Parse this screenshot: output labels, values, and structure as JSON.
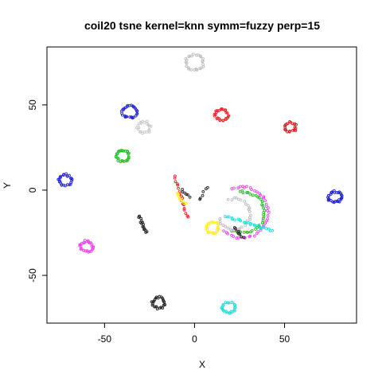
{
  "chart_data": {
    "type": "scatter",
    "title": "coil20 tsne kernel=knn symm=fuzzy perp=15",
    "xlabel": "X",
    "ylabel": "Y",
    "xlim": [
      -82,
      90
    ],
    "ylim": [
      -78,
      84
    ],
    "grid": false,
    "legend": "none",
    "x_ticks": [
      -50,
      0,
      50
    ],
    "y_ticks": [
      -50,
      0,
      50
    ],
    "x_tick_labels": [
      "-50",
      "0",
      "50"
    ],
    "y_tick_labels": [
      "-50",
      "0",
      "50"
    ],
    "clusters": [
      {
        "shape": "ring",
        "color": "#bdbdbd",
        "cx": 0,
        "cy": 75,
        "r": 5,
        "n": 26
      },
      {
        "shape": "ring",
        "color": "#2222dd",
        "cx": -36,
        "cy": 46,
        "r": 4,
        "n": 30
      },
      {
        "shape": "ring",
        "color": "#ee2222",
        "cx": 15,
        "cy": 44,
        "r": 3.5,
        "n": 26
      },
      {
        "shape": "ring",
        "color": "#cc2222",
        "cx": 53,
        "cy": 37,
        "r": 3,
        "n": 22
      },
      {
        "shape": "ring",
        "color": "#c8c8c8",
        "cx": -28,
        "cy": 37,
        "r": 3.5,
        "n": 22
      },
      {
        "shape": "ring",
        "color": "#22bb22",
        "cx": -40,
        "cy": 20,
        "r": 3.5,
        "n": 28
      },
      {
        "shape": "ring",
        "color": "#2222dd",
        "cx": -72,
        "cy": 6,
        "r": 3.5,
        "n": 26
      },
      {
        "shape": "ring",
        "color": "#1a1ad0",
        "cx": 78,
        "cy": -4,
        "r": 3.5,
        "n": 28
      },
      {
        "shape": "ring",
        "color": "#ee44ee",
        "cx": -60,
        "cy": -33,
        "r": 3.5,
        "n": 28
      },
      {
        "shape": "ring",
        "color": "#ffee22",
        "cx": 10,
        "cy": -22,
        "r": 3.5,
        "n": 26
      },
      {
        "shape": "ring",
        "color": "#222222",
        "cx": -20,
        "cy": -66,
        "r": 3.5,
        "n": 26
      },
      {
        "shape": "ring",
        "color": "#22dddd",
        "cx": 19,
        "cy": -69,
        "r": 3.5,
        "n": 26
      },
      {
        "shape": "line",
        "color": "#222222",
        "x1": -31,
        "y1": -15,
        "x2": -27,
        "y2": -25,
        "n": 16
      },
      {
        "shape": "line",
        "color": "#ee2222",
        "x1": -11,
        "y1": 8,
        "x2": -4,
        "y2": -16,
        "n": 18
      },
      {
        "shape": "line",
        "color": "#ffee22",
        "x1": -10,
        "y1": -2,
        "x2": -5,
        "y2": -8,
        "n": 10
      },
      {
        "shape": "line",
        "color": "#222222",
        "x1": -7,
        "y1": 0,
        "x2": -3,
        "y2": -4,
        "n": 6
      },
      {
        "shape": "arc",
        "color": "#ee44ee",
        "cx": 26,
        "cy": -13,
        "r": 15,
        "a1": 230,
        "a2": 470,
        "n": 44
      },
      {
        "shape": "arc",
        "color": "#22bb22",
        "cx": 27,
        "cy": -13,
        "r": 12,
        "a1": 240,
        "a2": 460,
        "n": 36
      },
      {
        "shape": "arc",
        "color": "#bdbdbd",
        "cx": 22,
        "cy": -14,
        "r": 9,
        "a1": 200,
        "a2": 470,
        "n": 30
      },
      {
        "shape": "line",
        "color": "#22dddd",
        "x1": 17,
        "y1": -15,
        "x2": 43,
        "y2": -24,
        "n": 24
      },
      {
        "shape": "line",
        "color": "#222222",
        "x1": 22,
        "y1": -22,
        "x2": 27,
        "y2": -28,
        "n": 8
      },
      {
        "shape": "line",
        "color": "#222222",
        "x1": 7,
        "y1": 2,
        "x2": 3,
        "y2": -6,
        "n": 6
      }
    ]
  }
}
